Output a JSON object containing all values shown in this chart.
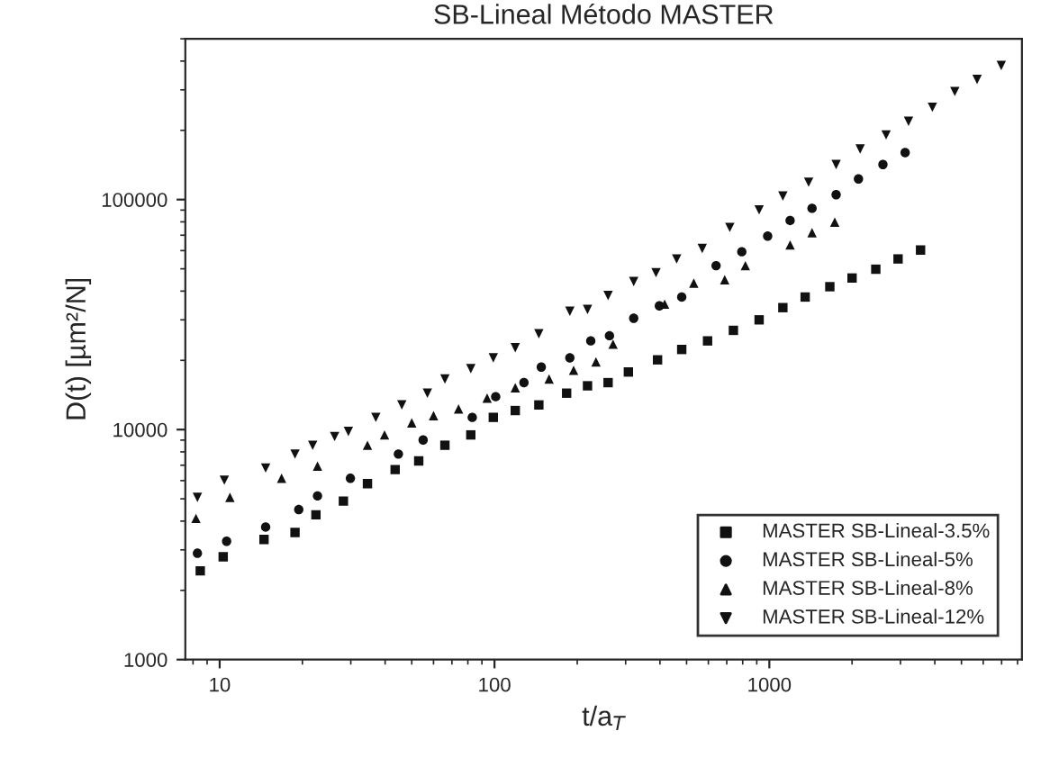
{
  "chart_data": {
    "type": "scatter",
    "title": "SB-Lineal Método MASTER",
    "xlabel": "t/a$_{T}$",
    "ylabel": "D(t) [µm²/N]",
    "log": "xy",
    "xlim": [
      7.5,
      8300
    ],
    "ylim": [
      1000,
      500000
    ],
    "xticks": [
      10,
      100,
      1000
    ],
    "yticks": [
      1000,
      10000,
      100000
    ],
    "grid": false,
    "legend": "bottom right",
    "series": [
      {
        "name": "MASTER SB-Lineal-3.5%",
        "color": "#111111",
        "marker": "square",
        "x": [
          8.5,
          10.3,
          14.5,
          18.8,
          22.4,
          28.2,
          34.5,
          43.5,
          53,
          66,
          82,
          99,
          119,
          145,
          183,
          218,
          259,
          307,
          392,
          480,
          596,
          740,
          918,
          1120,
          1350,
          1660,
          2000,
          2440,
          2940,
          3550
        ],
        "values": [
          2430,
          2800,
          3330,
          3570,
          4260,
          4890,
          5820,
          6700,
          7310,
          8550,
          9480,
          11300,
          12100,
          12800,
          14400,
          15500,
          16000,
          17800,
          20100,
          22300,
          24300,
          27000,
          30000,
          33900,
          37700,
          41800,
          45600,
          49800,
          55200,
          60300
        ]
      },
      {
        "name": "MASTER SB-Lineal-5%",
        "color": "#111111",
        "marker": "circle",
        "x": [
          8.3,
          10.6,
          14.7,
          19.4,
          22.7,
          29.9,
          44.7,
          55,
          83,
          101,
          128,
          148,
          188,
          224,
          262,
          321,
          398,
          480,
          640,
          794,
          986,
          1190,
          1430,
          1750,
          2110,
          2590,
          3120
        ],
        "values": [
          2900,
          3270,
          3770,
          4490,
          5150,
          6140,
          7830,
          9010,
          11300,
          13900,
          16000,
          18700,
          20500,
          24300,
          25600,
          30500,
          34500,
          37700,
          51600,
          59300,
          69400,
          81100,
          91600,
          105000,
          123000,
          142000,
          160000
        ]
      },
      {
        "name": "MASTER SB-Lineal-8%",
        "color": "#111111",
        "marker": "triangle",
        "x": [
          8.2,
          10.9,
          16.8,
          22.7,
          34.5,
          39.8,
          50,
          60,
          74,
          94,
          119,
          158,
          194,
          234,
          270,
          416,
          531,
          688,
          818,
          1190,
          1430,
          1730
        ],
        "values": [
          4110,
          5070,
          6140,
          6940,
          8550,
          9480,
          10700,
          11500,
          12300,
          13700,
          15200,
          16600,
          18100,
          19700,
          23500,
          35100,
          43300,
          44800,
          51600,
          63500,
          71800,
          79800
        ]
      },
      {
        "name": "MASTER SB-Lineal-12%",
        "color": "#111111",
        "marker": "triangle_down",
        "x": [
          8.3,
          10.4,
          14.7,
          18.8,
          21.8,
          26.2,
          29.4,
          37,
          46,
          57,
          66,
          82,
          99,
          119,
          145,
          188,
          218,
          259,
          321,
          387,
          460,
          570,
          718,
          918,
          1120,
          1390,
          1750,
          2140,
          2660,
          3210,
          3920,
          4730,
          5700,
          6980
        ],
        "values": [
          5070,
          6030,
          6810,
          7830,
          8550,
          9330,
          9820,
          11300,
          12800,
          14400,
          16600,
          18400,
          20500,
          22700,
          26100,
          32700,
          33300,
          38300,
          44000,
          48100,
          55200,
          61300,
          75700,
          90200,
          103600,
          119000,
          142000,
          166000,
          191000,
          219000,
          252000,
          295000,
          333000,
          383000
        ]
      }
    ]
  }
}
